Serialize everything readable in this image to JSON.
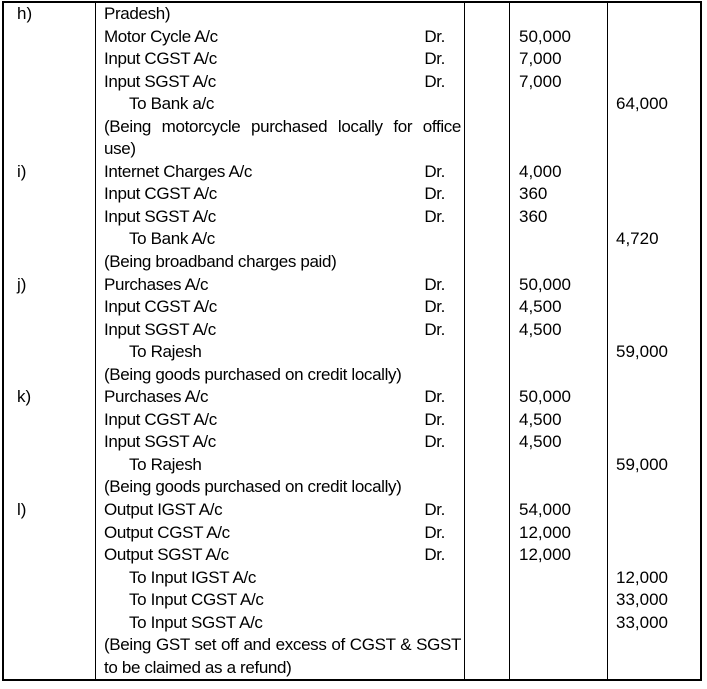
{
  "table": {
    "columns": [
      "entry-label",
      "particulars",
      "ledger-folio",
      "debit-amount",
      "credit-amount"
    ],
    "dr_label": "Dr.",
    "border_color": "#000000",
    "text_color": "#000000",
    "background_color": "#ffffff",
    "entries": [
      {
        "label": "h)",
        "lines": [
          {
            "particulars": "Pradesh)",
            "style": "account"
          },
          {
            "particulars": "Motor Cycle A/c",
            "dr": "Dr.",
            "debit": "50,000",
            "style": "account"
          },
          {
            "particulars": "Input CGST A/c",
            "dr": "Dr.",
            "debit": "7,000",
            "style": "account"
          },
          {
            "particulars": "Input SGST A/c",
            "dr": "Dr.",
            "debit": "7,000",
            "style": "account"
          },
          {
            "particulars": "To Bank a/c",
            "credit": "64,000",
            "style": "to"
          },
          {
            "particulars": "(Being motorcycle purchased locally for office use)",
            "style": "narration"
          }
        ]
      },
      {
        "label": "i)",
        "lines": [
          {
            "particulars": "Internet Charges A/c",
            "dr": "Dr.",
            "debit": "4,000",
            "style": "account"
          },
          {
            "particulars": "Input CGST A/c",
            "dr": "Dr.",
            "debit": "360",
            "style": "account"
          },
          {
            "particulars": "Input SGST A/c",
            "dr": "Dr.",
            "debit": "360",
            "style": "account"
          },
          {
            "particulars": "To Bank A/c",
            "credit": "4,720",
            "style": "to"
          },
          {
            "particulars": "(Being broadband charges paid)",
            "style": "narration"
          }
        ]
      },
      {
        "label": "j)",
        "lines": [
          {
            "particulars": "Purchases A/c",
            "dr": "Dr.",
            "debit": "50,000",
            "style": "account"
          },
          {
            "particulars": "Input CGST A/c",
            "dr": "Dr.",
            "debit": "4,500",
            "style": "account"
          },
          {
            "particulars": "Input SGST A/c",
            "dr": "Dr.",
            "debit": "4,500",
            "style": "account"
          },
          {
            "particulars": "To Rajesh",
            "credit": "59,000",
            "style": "to"
          },
          {
            "particulars": "(Being goods purchased on credit locally)",
            "style": "narration"
          }
        ]
      },
      {
        "label": "k)",
        "lines": [
          {
            "particulars": "Purchases A/c",
            "dr": "Dr.",
            "debit": "50,000",
            "style": "account"
          },
          {
            "particulars": "Input CGST A/c",
            "dr": "Dr.",
            "debit": "4,500",
            "style": "account"
          },
          {
            "particulars": "Input SGST A/c",
            "dr": "Dr.",
            "debit": "4,500",
            "style": "account"
          },
          {
            "particulars": "To Rajesh",
            "credit": "59,000",
            "style": "to"
          },
          {
            "particulars": "(Being goods purchased on credit locally)",
            "style": "narration"
          }
        ]
      },
      {
        "label": "l)",
        "lines": [
          {
            "particulars": "Output IGST A/c",
            "dr": "Dr.",
            "debit": "54,000",
            "style": "account"
          },
          {
            "particulars": "Output CGST A/c",
            "dr": "Dr.",
            "debit": "12,000",
            "style": "account"
          },
          {
            "particulars": "Output SGST A/c",
            "dr": "Dr.",
            "debit": "12,000",
            "style": "account"
          },
          {
            "particulars": "To Input IGST A/c",
            "credit": "12,000",
            "style": "to"
          },
          {
            "particulars": "To Input CGST A/c",
            "credit": "33,000",
            "style": "to"
          },
          {
            "particulars": "To Input SGST A/c",
            "credit": "33,000",
            "style": "to"
          },
          {
            "particulars": "(Being GST set off and excess of CGST & SGST to be claimed as a refund)",
            "style": "narration"
          }
        ]
      }
    ]
  }
}
